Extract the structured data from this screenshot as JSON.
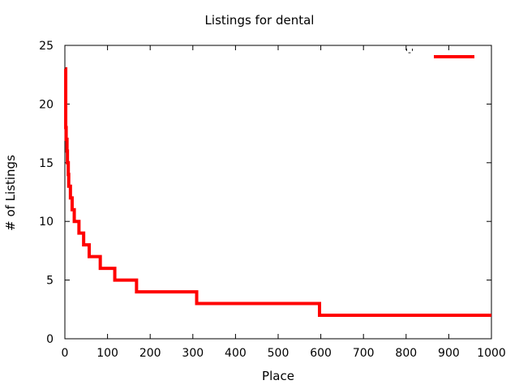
{
  "chart_data": {
    "type": "line",
    "title": "Listings for dental",
    "xlabel": "Place",
    "ylabel": "# of Listings",
    "xlim": [
      0,
      1000
    ],
    "ylim": [
      0,
      25
    ],
    "x_ticks": [
      "0",
      "100",
      "200",
      "300",
      "400",
      "500",
      "600",
      "700",
      "800",
      "900",
      "1000"
    ],
    "y_ticks": [
      "0",
      "5",
      "10",
      "15",
      "20",
      "25"
    ],
    "grid": false,
    "legend_position": "top-right",
    "series": [
      {
        "name": "'-'",
        "color": "#ff0000",
        "step": true,
        "points": [
          [
            1,
            23
          ],
          [
            2,
            18
          ],
          [
            3,
            17
          ],
          [
            5,
            16
          ],
          [
            6,
            15
          ],
          [
            8,
            14
          ],
          [
            9,
            13
          ],
          [
            13,
            12
          ],
          [
            17,
            11
          ],
          [
            22,
            10
          ],
          [
            33,
            9
          ],
          [
            44,
            8
          ],
          [
            57,
            7
          ],
          [
            83,
            6
          ],
          [
            117,
            5
          ],
          [
            168,
            4
          ],
          [
            309,
            3
          ],
          [
            597,
            2
          ],
          [
            1000,
            2
          ]
        ]
      }
    ]
  }
}
